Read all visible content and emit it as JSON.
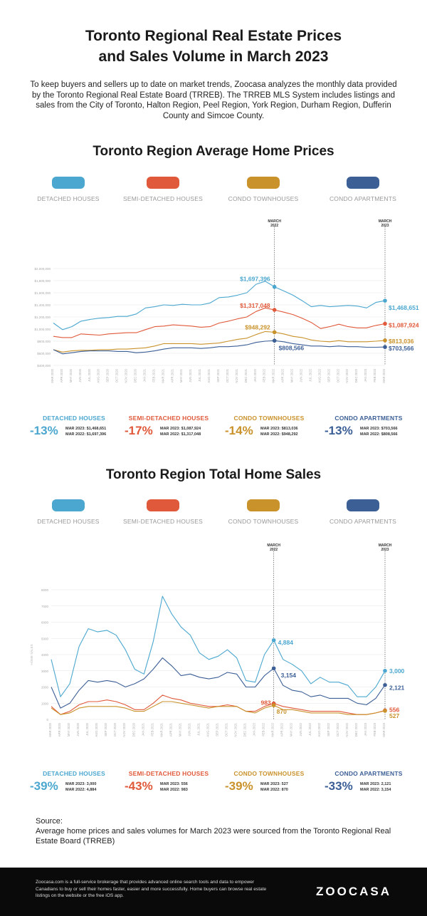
{
  "header": {
    "title": "Toronto Regional Real Estate Prices\nand Sales Volume in March 2023",
    "intro": "To keep buyers and sellers up to date on market trends, Zoocasa analyzes the monthly data provided by the Toronto Regional Real Estate Board (TRREB). The TRREB MLS System includes listings and sales from the City of Toronto, Halton Region, Peel Region, York Region, Durham Region, Dufferin County and Simcoe County."
  },
  "colors": {
    "detached": "#4ba7cf",
    "semi": "#e0593a",
    "condo_town": "#c9922b",
    "condo_apt": "#3c5f96",
    "grid": "#e6e6e6",
    "marker": "#555555"
  },
  "legend": [
    {
      "label": "DETACHED HOUSES",
      "color": "#4ba7cf"
    },
    {
      "label": "SEMI-DETACHED HOUSES",
      "color": "#e0593a"
    },
    {
      "label": "CONDO TOWNHOUSES",
      "color": "#c9922b"
    },
    {
      "label": "CONDO APARTMENTS",
      "color": "#3c5f96"
    }
  ],
  "chart_data": [
    {
      "type": "line",
      "title": "Toronto Region Average Home Prices",
      "x": [
        "MAR 2020",
        "APR 2020",
        "MAY 2020",
        "JUN 2020",
        "JUL 2020",
        "AUG 2020",
        "SEP 2020",
        "OCT 2020",
        "NOV 2020",
        "DEC 2020",
        "JAN 2021",
        "FEB 2021",
        "MAR 2021",
        "APR 2021",
        "MAY 2021",
        "JUN 2021",
        "JUL 2021",
        "AUG 2021",
        "SEP 2021",
        "OCT 2021",
        "NOV 2021",
        "DEC 2021",
        "JAN 2022",
        "FEB 2022",
        "MAR 2022",
        "APR 2022",
        "MAY 2022",
        "JUN 2022",
        "JUL 2022",
        "AUG 2022",
        "SEP 2022",
        "OCT 2022",
        "NOV 2022",
        "DEC 2022",
        "JAN 2023",
        "FEB 2023",
        "MAR 2023"
      ],
      "y_ticks": [
        "$400,000",
        "$600,000",
        "$800,000",
        "$1,000,000",
        "$1,200,000",
        "$1,400,000",
        "$1,600,000",
        "$1,800,000",
        "$2,000,000"
      ],
      "ylim": [
        400000,
        2000000
      ],
      "markers": [
        "MARCH\n2022",
        "MARCH\n2023"
      ],
      "series": [
        {
          "name": "DETACHED HOUSES",
          "color": "#4ba7cf",
          "values": [
            1100000,
            990000,
            1040000,
            1130000,
            1160000,
            1180000,
            1190000,
            1210000,
            1210000,
            1250000,
            1350000,
            1370000,
            1400000,
            1390000,
            1410000,
            1400000,
            1400000,
            1430000,
            1520000,
            1530000,
            1560000,
            1600000,
            1740000,
            1790000,
            1697396,
            1630000,
            1560000,
            1470000,
            1370000,
            1390000,
            1370000,
            1380000,
            1390000,
            1380000,
            1350000,
            1440000,
            1468651
          ],
          "end_labels": [
            "$1,697,396",
            "$1,468,651"
          ]
        },
        {
          "name": "SEMI-DETACHED HOUSES",
          "color": "#e0593a",
          "values": [
            880000,
            860000,
            860000,
            920000,
            910000,
            900000,
            920000,
            930000,
            940000,
            940000,
            990000,
            1040000,
            1050000,
            1070000,
            1060000,
            1050000,
            1030000,
            1040000,
            1100000,
            1130000,
            1170000,
            1200000,
            1290000,
            1350000,
            1317048,
            1280000,
            1240000,
            1180000,
            1110000,
            1010000,
            1040000,
            1080000,
            1040000,
            1020000,
            1020000,
            1060000,
            1087924
          ],
          "end_labels": [
            "$1,317,048",
            "$1,087,924"
          ]
        },
        {
          "name": "CONDO TOWNHOUSES",
          "color": "#c9922b",
          "values": [
            660000,
            620000,
            640000,
            650000,
            650000,
            660000,
            660000,
            670000,
            670000,
            680000,
            690000,
            720000,
            760000,
            760000,
            760000,
            760000,
            750000,
            760000,
            770000,
            800000,
            830000,
            850000,
            910000,
            960000,
            948292,
            920000,
            880000,
            860000,
            820000,
            800000,
            790000,
            810000,
            790000,
            790000,
            790000,
            800000,
            813036
          ],
          "end_labels": [
            "$948,292",
            "$813,036"
          ]
        },
        {
          "name": "CONDO APARTMENTS",
          "color": "#3c5f96",
          "values": [
            660000,
            590000,
            610000,
            630000,
            640000,
            640000,
            640000,
            630000,
            630000,
            610000,
            620000,
            640000,
            670000,
            690000,
            690000,
            690000,
            680000,
            690000,
            710000,
            710000,
            720000,
            740000,
            780000,
            800000,
            808566,
            790000,
            760000,
            740000,
            720000,
            720000,
            710000,
            720000,
            710000,
            710000,
            700000,
            700000,
            703566
          ],
          "end_labels": [
            "$808,566",
            "$703,566"
          ]
        }
      ]
    },
    {
      "type": "line",
      "title": "Toronto Region Total Home Sales",
      "ylabel": "HOME SALES",
      "x": [
        "MAR 2020",
        "APR 2020",
        "MAY 2020",
        "JUN 2020",
        "JUL 2020",
        "AUG 2020",
        "SEP 2020",
        "OCT 2020",
        "NOV 2020",
        "DEC 2020",
        "JAN 2021",
        "FEB 2021",
        "MAR 2021",
        "APR 2021",
        "MAY 2021",
        "JUN 2021",
        "JUL 2021",
        "AUG 2021",
        "SEP 2021",
        "OCT 2021",
        "NOV 2021",
        "DEC 2021",
        "JAN 2022",
        "FEB 2022",
        "MAR 2022",
        "APR 2022",
        "MAY 2022",
        "JUN 2022",
        "JUL 2022",
        "AUG 2022",
        "SEP 2022",
        "OCT 2022",
        "NOV 2022",
        "DEC 2022",
        "JAN 2023",
        "FEB 2023",
        "MAR 2023"
      ],
      "y_ticks": [
        "0",
        "1000",
        "2000",
        "3000",
        "4000",
        "5000",
        "6000",
        "7000",
        "8000"
      ],
      "ylim": [
        0,
        8000
      ],
      "markers": [
        "MARCH\n2022",
        "MARCH\n2023"
      ],
      "series": [
        {
          "name": "DETACHED HOUSES",
          "color": "#4ba7cf",
          "values": [
            3700,
            1400,
            2200,
            4500,
            5600,
            5400,
            5500,
            5200,
            4300,
            3100,
            2800,
            4800,
            7600,
            6500,
            5700,
            5200,
            4100,
            3700,
            3900,
            4300,
            3800,
            2400,
            2300,
            4000,
            4884,
            3700,
            3400,
            3000,
            2200,
            2600,
            2300,
            2300,
            2100,
            1400,
            1400,
            2000,
            3000
          ],
          "end_labels": [
            "4,884",
            "3,000"
          ]
        },
        {
          "name": "SEMI-DETACHED HOUSES",
          "color": "#e0593a",
          "values": [
            800,
            300,
            500,
            900,
            1100,
            1100,
            1200,
            1100,
            900,
            600,
            600,
            1000,
            1500,
            1300,
            1200,
            1000,
            900,
            800,
            800,
            900,
            800,
            500,
            500,
            800,
            983,
            800,
            700,
            600,
            500,
            500,
            500,
            500,
            400,
            300,
            300,
            400,
            556
          ],
          "end_labels": [
            "983",
            "556"
          ]
        },
        {
          "name": "CONDO TOWNHOUSES",
          "color": "#c9922b",
          "values": [
            700,
            300,
            400,
            700,
            800,
            800,
            800,
            800,
            700,
            500,
            500,
            800,
            1100,
            1100,
            1000,
            900,
            800,
            700,
            800,
            800,
            800,
            500,
            400,
            700,
            870,
            600,
            600,
            500,
            400,
            400,
            400,
            400,
            300,
            300,
            300,
            400,
            527
          ],
          "end_labels": [
            "870",
            "527"
          ]
        },
        {
          "name": "CONDO APARTMENTS",
          "color": "#3c5f96",
          "values": [
            2000,
            700,
            1000,
            1800,
            2400,
            2300,
            2400,
            2300,
            2000,
            2200,
            2500,
            3100,
            3800,
            3300,
            2700,
            2800,
            2600,
            2500,
            2600,
            2900,
            2800,
            2000,
            2000,
            2700,
            3154,
            2100,
            1800,
            1700,
            1400,
            1500,
            1300,
            1300,
            1300,
            1000,
            900,
            1300,
            2121
          ],
          "end_labels": [
            "3,154",
            "2,121"
          ]
        }
      ]
    }
  ],
  "prices": {
    "title": "Toronto Region Average Home Prices",
    "stats": [
      {
        "name": "DETACHED HOUSES",
        "pct": "-13%",
        "line1": "MAR 2023: $1,468,651",
        "line2": "MAR 2022: $1,697,396",
        "color": "#4ba7cf"
      },
      {
        "name": "SEMI-DETACHED HOUSES",
        "pct": "-17%",
        "line1": "MAR 2023: $1,087,924",
        "line2": "MAR 2022: $1,317,048",
        "color": "#e0593a"
      },
      {
        "name": "CONDO TOWNHOUSES",
        "pct": "-14%",
        "line1": "MAR 2023: $813,036",
        "line2": "MAR 2022: $948,292",
        "color": "#c9922b"
      },
      {
        "name": "CONDO APARTMENTS",
        "pct": "-13%",
        "line1": "MAR 2023: $703,566",
        "line2": "MAR 2022: $808,566",
        "color": "#3c5f96"
      }
    ]
  },
  "sales": {
    "title": "Toronto Region Total Home Sales",
    "stats": [
      {
        "name": "DETACHED HOUSES",
        "pct": "-39%",
        "line1": "MAR 2023: 3,000",
        "line2": "MAR 2022: 4,884",
        "color": "#4ba7cf"
      },
      {
        "name": "SEMI-DETACHED HOUSES",
        "pct": "-43%",
        "line1": "MAR 2023: 556",
        "line2": "MAR 2022: 983",
        "color": "#e0593a"
      },
      {
        "name": "CONDO TOWNHOUSES",
        "pct": "-39%",
        "line1": "MAR 2023: 527",
        "line2": "MAR 2022: 870",
        "color": "#c9922b"
      },
      {
        "name": "CONDO APARTMENTS",
        "pct": "-33%",
        "line1": "MAR 2023: 2,121",
        "line2": "MAR 2022: 3,154",
        "color": "#3c5f96"
      }
    ]
  },
  "source": {
    "heading": "Source:",
    "text": "Average home prices and sales volumes for March 2023 were sourced from the Toronto Regional Real Estate Board (TRREB)"
  },
  "footer": {
    "text": "Zoocasa.com is a full-service brokerage that provides advanced online search tools and data to empower Canadians to buy or sell their homes faster, easier and more successfully. Home buyers can browse real estate listings on the website or the free iOS app.",
    "logo": "ZOOCASA"
  }
}
